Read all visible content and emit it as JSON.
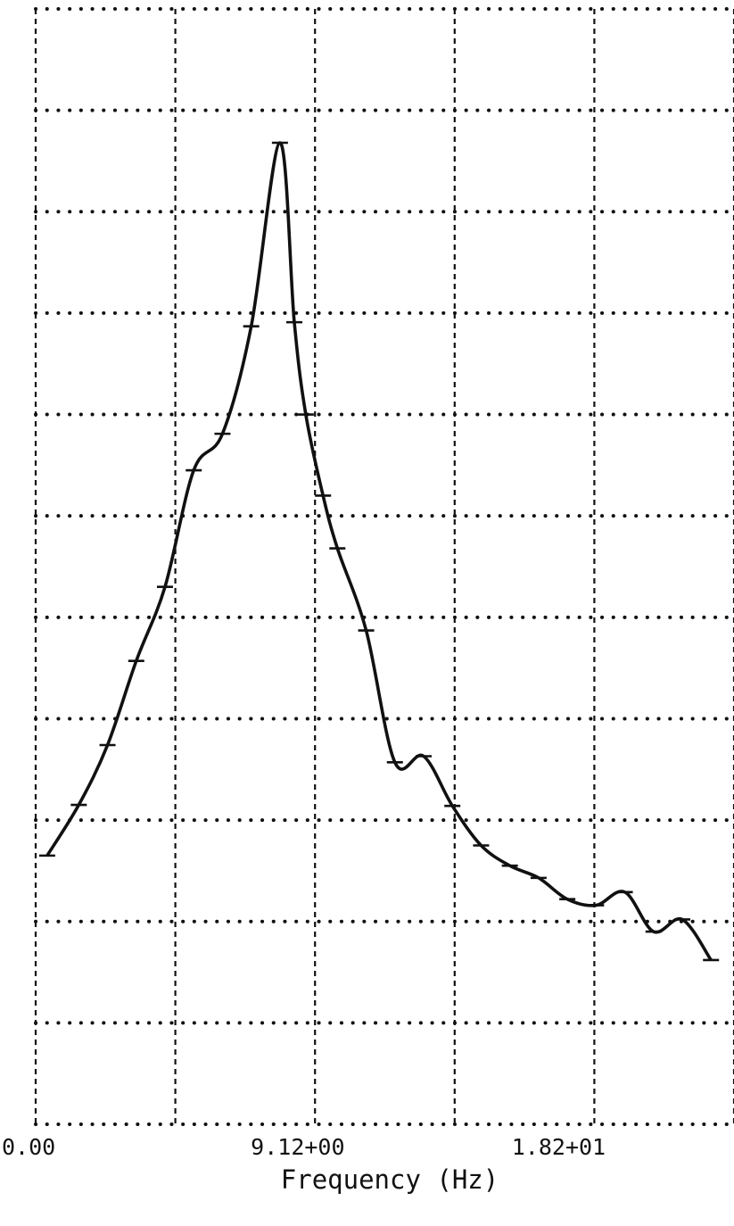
{
  "chart_data": {
    "type": "line",
    "title": "",
    "xlabel": "Frequency (Hz)",
    "ylabel": "",
    "x_tick_labels": [
      {
        "value": 0,
        "label": "0.00"
      },
      {
        "value": 9.12,
        "label": "9.12+00"
      },
      {
        "value": 18.2,
        "label": "1.82+01"
      }
    ],
    "xlim": [
      0,
      24.3
    ],
    "ylim": [
      0,
      11
    ],
    "grid": true,
    "y_tick_labels": [],
    "series": [
      {
        "x": [
          0.4,
          1.5,
          2.5,
          3.5,
          4.5,
          5.5,
          6.5,
          7.5,
          8.5,
          9.0,
          9.4,
          10.0,
          10.5,
          11.5,
          12.5,
          13.5,
          14.5,
          15.5,
          16.5,
          17.5,
          18.5,
          19.5,
          20.5,
          21.5,
          22.5,
          23.5
        ],
        "y": [
          2.65,
          3.15,
          3.74,
          4.57,
          5.3,
          6.45,
          6.81,
          7.87,
          9.68,
          7.91,
          7.0,
          6.2,
          5.68,
          4.87,
          3.57,
          3.63,
          3.14,
          2.75,
          2.55,
          2.43,
          2.22,
          2.16,
          2.29,
          1.9,
          2.02,
          1.62
        ]
      }
    ]
  }
}
